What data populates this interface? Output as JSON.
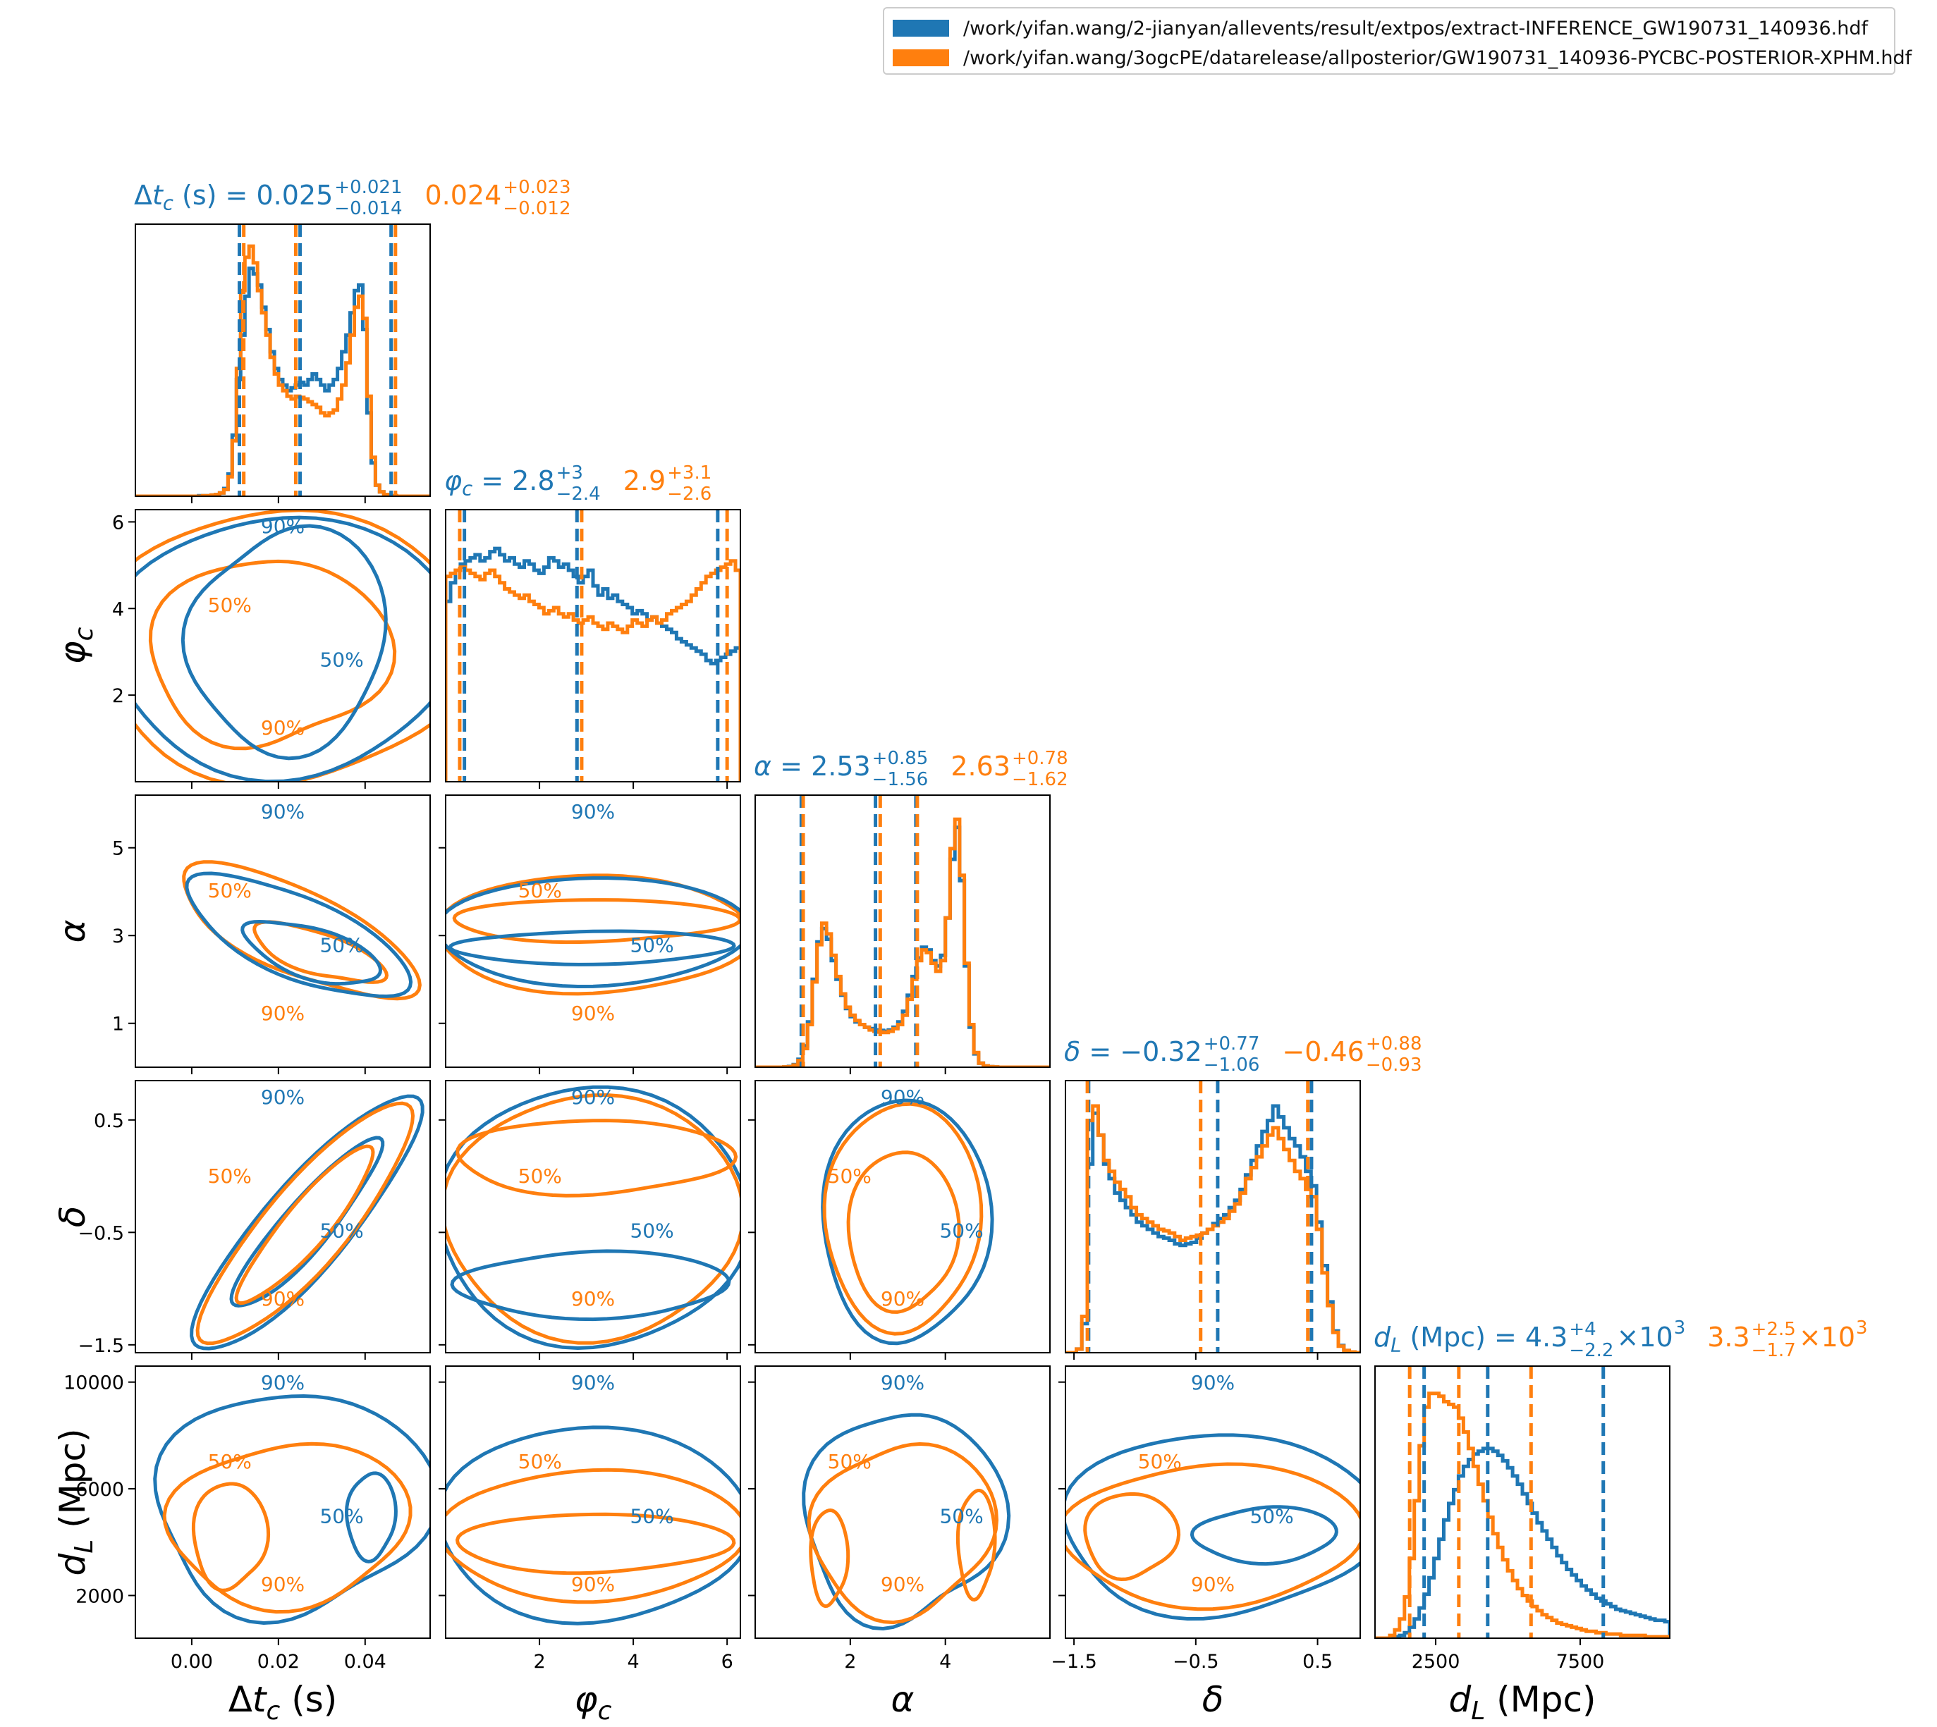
{
  "legend": {
    "entries": [
      {
        "label": "/work/yifan.wang/2-jianyan/allevents/result/extpos/extract-INFERENCE_GW190731_140936.hdf",
        "color": "#1f77b4"
      },
      {
        "label": "/work/yifan.wang/3ogcPE/datarelease/allposterior/GW190731_140936-PYCBC-POSTERIOR-XPHM.hdf",
        "color": "#ff7f0e"
      }
    ]
  },
  "colors": {
    "series1": "#1f77b4",
    "series2": "#ff7f0e"
  },
  "chart_data": {
    "type": "corner",
    "parameters": [
      {
        "key": "dtc",
        "axis_label": "Δt_c (s)",
        "summary": {
          "series1": {
            "median": "0.025",
            "plus": "+0.021",
            "minus": "−0.014"
          },
          "series2": {
            "median": "0.024",
            "plus": "+0.023",
            "minus": "−0.012"
          }
        },
        "range": [
          -0.013,
          0.055
        ],
        "ticks": [
          0.0,
          0.02,
          0.04
        ],
        "tick_labels": [
          "0.00",
          "0.02",
          "0.04"
        ],
        "quantiles": {
          "series1": [
            0.011,
            0.025,
            0.046
          ],
          "series2": [
            0.012,
            0.024,
            0.047
          ]
        }
      },
      {
        "key": "phic",
        "axis_label": "φ_c",
        "summary": {
          "series1": {
            "median": "2.8",
            "plus": "+3",
            "minus": "−2.4"
          },
          "series2": {
            "median": "2.9",
            "plus": "+3.1",
            "minus": "−2.6"
          }
        },
        "range": [
          0.0,
          6.283
        ],
        "ticks": [
          2,
          4,
          6
        ],
        "tick_labels": [
          "2",
          "4",
          "6"
        ],
        "quantiles": {
          "series1": [
            0.4,
            2.8,
            5.8
          ],
          "series2": [
            0.3,
            2.9,
            6.0
          ]
        }
      },
      {
        "key": "alpha",
        "axis_label": "α",
        "summary": {
          "series1": {
            "median": "2.53",
            "plus": "+0.85",
            "minus": "−1.56"
          },
          "series2": {
            "median": "2.63",
            "plus": "+0.78",
            "minus": "−1.62"
          }
        },
        "range": [
          0.0,
          6.2
        ],
        "ticks": [
          1,
          3,
          5
        ],
        "tick_labels": [
          "1",
          "3",
          "5"
        ],
        "ticks_x": [
          2,
          4
        ],
        "tick_labels_x": [
          "2",
          "4"
        ],
        "quantiles": {
          "series1": [
            0.97,
            2.53,
            3.38
          ],
          "series2": [
            1.01,
            2.63,
            3.41
          ]
        }
      },
      {
        "key": "delta",
        "axis_label": "δ",
        "summary": {
          "series1": {
            "median": "−0.32",
            "plus": "+0.77",
            "minus": "−1.06"
          },
          "series2": {
            "median": "−0.46",
            "plus": "+0.88",
            "minus": "−0.93"
          }
        },
        "range": [
          -1.57,
          0.85
        ],
        "ticks": [
          -1.5,
          -0.5,
          0.5
        ],
        "tick_labels": [
          "−1.5",
          "−0.5",
          "0.5"
        ],
        "quantiles": {
          "series1": [
            -1.38,
            -0.32,
            0.45
          ],
          "series2": [
            -1.39,
            -0.46,
            0.42
          ]
        }
      },
      {
        "key": "dl",
        "axis_label": "d_L (Mpc)",
        "summary": {
          "series1": {
            "median": "4.3",
            "plus": "+4",
            "minus": "−2.2",
            "exp": "10",
            "pow": "3"
          },
          "series2": {
            "median": "3.3",
            "plus": "+2.5",
            "minus": "−1.7",
            "exp": "10",
            "pow": "3"
          }
        },
        "range": [
          400,
          10600
        ],
        "ticks": [
          2000,
          6000,
          10000
        ],
        "tick_labels": [
          "2000",
          "6000",
          "10000"
        ],
        "ticks_x": [
          2500,
          7500
        ],
        "tick_labels_x": [
          "2500",
          "7500"
        ],
        "quantiles": {
          "series1": [
            2100,
            4300,
            8300
          ],
          "series2": [
            1600,
            3300,
            5800
          ]
        }
      }
    ],
    "histograms": {
      "dtc": {
        "series1": [
          0,
          0,
          0,
          0,
          0,
          0,
          0,
          0,
          0,
          0,
          0,
          0,
          0,
          0,
          0,
          1,
          1,
          1,
          2,
          3,
          6,
          14,
          40,
          110,
          210,
          290,
          360,
          410,
          400,
          380,
          340,
          300,
          260,
          230,
          210,
          200,
          190,
          195,
          200,
          205,
          200,
          210,
          220,
          210,
          200,
          190,
          200,
          210,
          230,
          260,
          290,
          330,
          370,
          380,
          300,
          150,
          60,
          20,
          8,
          3,
          1,
          1,
          0,
          0,
          0,
          0,
          0,
          0,
          0,
          0
        ],
        "series2": [
          0,
          0,
          0,
          0,
          0,
          0,
          0,
          0,
          0,
          0,
          0,
          0,
          0,
          0,
          0,
          0,
          1,
          1,
          2,
          3,
          6,
          12,
          35,
          100,
          230,
          370,
          430,
          450,
          420,
          370,
          330,
          290,
          250,
          220,
          200,
          190,
          180,
          175,
          180,
          178,
          175,
          170,
          165,
          160,
          150,
          145,
          150,
          155,
          175,
          200,
          240,
          290,
          340,
          360,
          320,
          180,
          70,
          20,
          8,
          3,
          1,
          1,
          0,
          0,
          0,
          0,
          0,
          0,
          0,
          0
        ],
        "ymax": 470
      },
      "phic": {
        "series1": [
          290,
          320,
          340,
          350,
          355,
          360,
          365,
          355,
          360,
          370,
          375,
          365,
          355,
          360,
          350,
          345,
          355,
          350,
          340,
          335,
          345,
          360,
          355,
          345,
          350,
          340,
          330,
          320,
          330,
          340,
          315,
          300,
          310,
          295,
          300,
          290,
          285,
          280,
          270,
          275,
          270,
          260,
          265,
          255,
          250,
          245,
          240,
          230,
          225,
          220,
          215,
          210,
          205,
          195,
          190,
          195,
          200,
          205,
          210,
          215
        ],
        "series2": [
          330,
          335,
          340,
          345,
          340,
          335,
          330,
          325,
          335,
          340,
          330,
          320,
          310,
          305,
          300,
          295,
          300,
          290,
          285,
          280,
          270,
          275,
          280,
          270,
          265,
          270,
          260,
          255,
          260,
          265,
          255,
          250,
          245,
          255,
          250,
          245,
          240,
          250,
          260,
          255,
          250,
          260,
          265,
          255,
          260,
          270,
          275,
          280,
          285,
          290,
          300,
          310,
          320,
          330,
          335,
          340,
          345,
          350,
          355,
          340
        ],
        "ymax": 420
      },
      "alpha": {
        "series1": [
          0,
          0,
          0,
          0,
          0,
          0,
          1,
          3,
          10,
          30,
          80,
          170,
          330,
          470,
          520,
          480,
          400,
          330,
          270,
          220,
          190,
          170,
          160,
          150,
          145,
          140,
          138,
          135,
          140,
          150,
          170,
          210,
          270,
          340,
          410,
          450,
          440,
          400,
          380,
          420,
          560,
          780,
          900,
          700,
          380,
          150,
          50,
          15,
          5,
          2,
          1,
          0,
          0,
          0,
          0,
          0,
          0,
          0,
          0,
          0,
          0,
          0
        ],
        "series2": [
          0,
          0,
          0,
          0,
          0,
          0,
          1,
          2,
          8,
          25,
          70,
          160,
          320,
          460,
          540,
          500,
          420,
          340,
          275,
          225,
          195,
          175,
          160,
          150,
          140,
          135,
          132,
          130,
          135,
          145,
          160,
          195,
          255,
          330,
          400,
          440,
          430,
          390,
          360,
          400,
          560,
          820,
          930,
          720,
          390,
          160,
          55,
          15,
          5,
          2,
          1,
          0,
          0,
          0,
          0,
          0,
          0,
          0,
          0,
          0,
          0,
          0
        ],
        "ymax": 980
      },
      "delta": {
        "series1": [
          0,
          0,
          5,
          40,
          260,
          330,
          300,
          260,
          240,
          220,
          210,
          200,
          190,
          180,
          175,
          170,
          165,
          160,
          158,
          155,
          150,
          148,
          150,
          152,
          158,
          165,
          170,
          178,
          185,
          190,
          200,
          210,
          225,
          245,
          265,
          285,
          305,
          320,
          340,
          325,
          310,
          295,
          285,
          270,
          250,
          230,
          180,
          120,
          70,
          30,
          10,
          3,
          1,
          0
        ],
        "series2": [
          0,
          0,
          5,
          50,
          320,
          340,
          300,
          265,
          250,
          235,
          225,
          215,
          200,
          190,
          185,
          180,
          175,
          170,
          168,
          165,
          160,
          155,
          158,
          160,
          162,
          165,
          170,
          175,
          180,
          185,
          195,
          205,
          220,
          240,
          255,
          270,
          285,
          300,
          310,
          295,
          280,
          265,
          250,
          240,
          225,
          215,
          170,
          110,
          65,
          28,
          9,
          3,
          1,
          0
        ],
        "ymax": 360
      },
      "dl": {
        "series1": [
          0,
          0,
          0,
          0,
          1,
          2,
          4,
          8,
          14,
          22,
          32,
          44,
          58,
          72,
          86,
          98,
          108,
          118,
          125,
          130,
          134,
          136,
          138,
          138,
          136,
          133,
          129,
          124,
          118,
          112,
          105,
          98,
          91,
          84,
          78,
          72,
          66,
          60,
          55,
          50,
          46,
          42,
          38,
          35,
          32,
          29,
          27,
          25,
          23,
          21,
          20,
          19,
          18,
          17,
          16,
          15,
          14,
          13,
          13,
          12
        ],
        "series2": [
          0,
          0,
          0,
          2,
          6,
          14,
          30,
          58,
          100,
          140,
          168,
          178,
          178,
          176,
          172,
          170,
          168,
          160,
          150,
          138,
          125,
          112,
          100,
          88,
          76,
          66,
          57,
          49,
          42,
          36,
          31,
          27,
          23,
          20,
          17,
          15,
          13,
          11,
          10,
          9,
          8,
          7,
          6,
          5,
          5,
          4,
          4,
          3,
          3,
          3,
          2,
          2,
          2,
          2,
          2,
          1,
          1,
          1,
          1,
          1
        ],
        "ymax": 190
      }
    },
    "contour_labels": {
      "inner": "50%",
      "outer": "90%"
    }
  }
}
